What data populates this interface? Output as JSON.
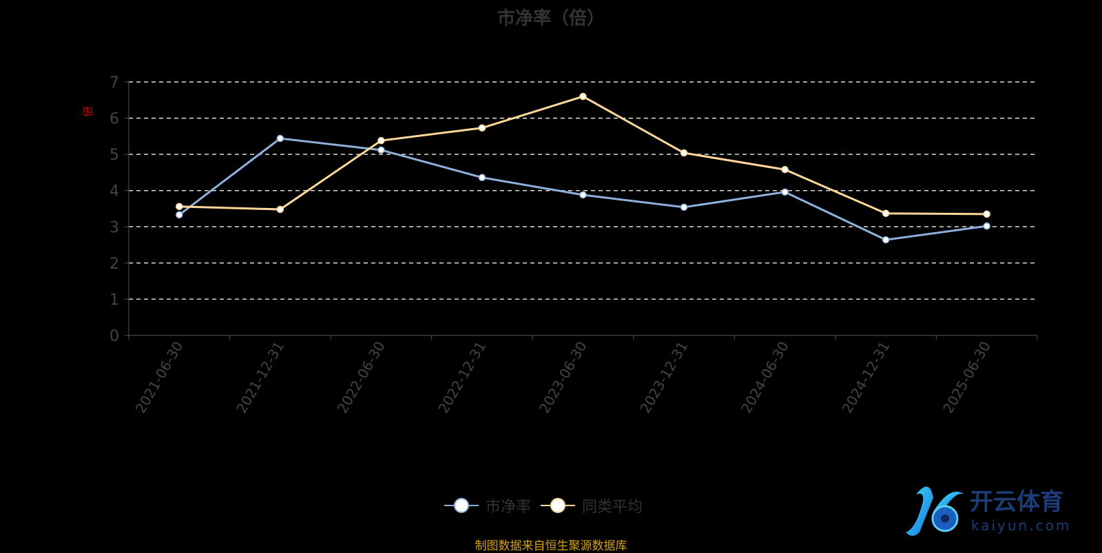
{
  "chart_data": {
    "type": "line",
    "title": "市净率（倍）",
    "ylabel": "倍",
    "xlabel": "",
    "categories": [
      "2021-06-30",
      "2021-12-31",
      "2022-06-30",
      "2022-12-31",
      "2023-06-30",
      "2023-12-31",
      "2024-06-30",
      "2024-12-31",
      "2025-06-30"
    ],
    "ylim": [
      0,
      7
    ],
    "yticks": [
      "0",
      "1",
      "2",
      "3",
      "4",
      "5",
      "6",
      "7"
    ],
    "grid": true,
    "legend_position": "bottom",
    "series": [
      {
        "name": "市净率",
        "color": "#8fb0dd",
        "values": [
          3.33,
          5.44,
          5.12,
          4.36,
          3.88,
          3.54,
          3.96,
          2.64,
          3.02
        ]
      },
      {
        "name": "同类平均",
        "color": "#ffd899",
        "values": [
          3.56,
          3.48,
          5.38,
          5.73,
          6.6,
          5.04,
          4.58,
          3.37,
          3.35
        ]
      }
    ]
  },
  "footer": {
    "source": "制图数据来自恒生聚源数据库"
  },
  "logo": {
    "text_cn": "开云体育",
    "text_en": "Kaiyun.com"
  }
}
